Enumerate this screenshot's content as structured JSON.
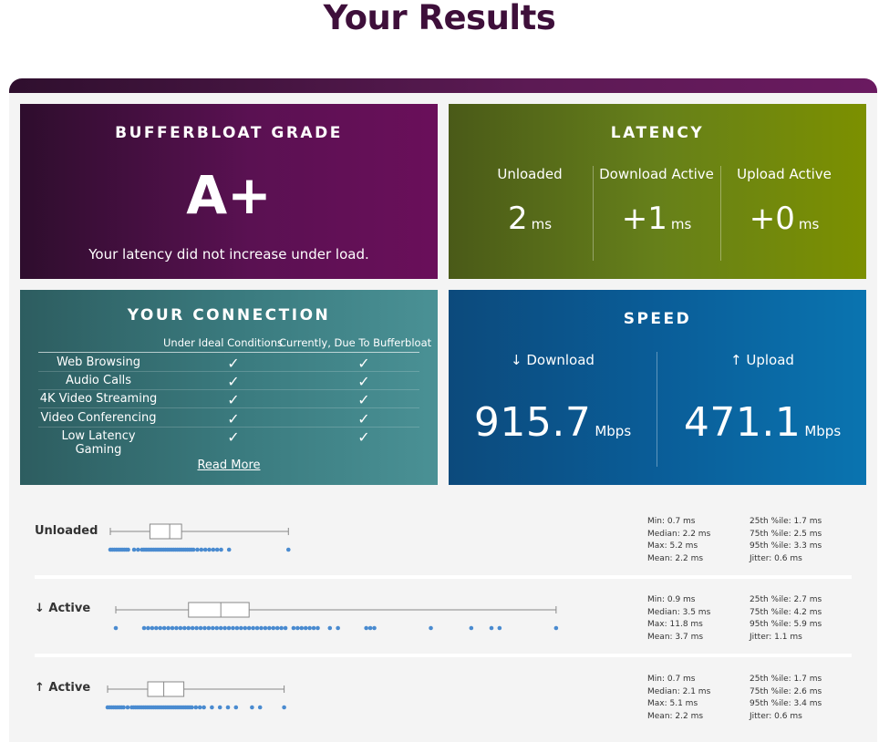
{
  "page": {
    "title": "Your Results"
  },
  "grade": {
    "title": "BUFFERBLOAT GRADE",
    "letter": "A+",
    "message": "Your latency did not increase under load."
  },
  "latency": {
    "title": "LATENCY",
    "columns": [
      {
        "label": "Unloaded",
        "value": "2",
        "unit": "ms"
      },
      {
        "label": "Download Active",
        "value": "+1",
        "unit": "ms"
      },
      {
        "label": "Upload Active",
        "value": "+0",
        "unit": "ms"
      }
    ]
  },
  "connection": {
    "title": "YOUR CONNECTION",
    "col_ideal": "Under Ideal Conditions",
    "col_current": "Currently, Due To Bufferbloat",
    "rows": [
      {
        "label": "Web Browsing",
        "ideal": "✓",
        "current": "✓"
      },
      {
        "label": "Audio Calls",
        "ideal": "✓",
        "current": "✓"
      },
      {
        "label": "4K Video Streaming",
        "ideal": "✓",
        "current": "✓"
      },
      {
        "label": "Video Conferencing",
        "ideal": "✓",
        "current": "✓"
      },
      {
        "label": "Low Latency Gaming",
        "ideal": "✓",
        "current": "✓"
      }
    ],
    "read_more": "Read More"
  },
  "speed": {
    "title": "SPEED",
    "download": {
      "label": "↓ Download",
      "value": "915.7",
      "unit": "Mbps"
    },
    "upload": {
      "label": "↑ Upload",
      "value": "471.1",
      "unit": "Mbps"
    }
  },
  "distributions": [
    {
      "label": "Unloaded",
      "stats_left": [
        "Min: 0.7 ms",
        "Median: 2.2 ms",
        "Max: 5.2 ms",
        "Mean: 2.2 ms"
      ],
      "stats_right": [
        "25th %ile: 1.7 ms",
        "75th %ile: 2.5 ms",
        "95th %ile: 3.3 ms",
        "Jitter: 0.6 ms"
      ],
      "box": {
        "min": 0.7,
        "q1": 1.7,
        "median": 2.2,
        "q3": 2.5,
        "max": 5.2
      },
      "samples": [
        0.7,
        0.75,
        0.8,
        0.85,
        0.9,
        0.95,
        1.0,
        1.05,
        1.1,
        1.15,
        1.3,
        1.4,
        1.5,
        1.55,
        1.6,
        1.65,
        1.7,
        1.75,
        1.8,
        1.85,
        1.9,
        1.95,
        2.0,
        2.05,
        2.1,
        2.15,
        2.2,
        2.25,
        2.3,
        2.35,
        2.4,
        2.45,
        2.5,
        2.55,
        2.6,
        2.65,
        2.7,
        2.75,
        2.8,
        2.9,
        3.0,
        3.1,
        3.2,
        3.3,
        3.4,
        3.5,
        3.7,
        5.2
      ]
    },
    {
      "label": "↓ Active",
      "stats_left": [
        "Min: 0.9 ms",
        "Median: 3.5 ms",
        "Max: 11.8 ms",
        "Mean: 3.7 ms"
      ],
      "stats_right": [
        "25th %ile: 2.7 ms",
        "75th %ile: 4.2 ms",
        "95th %ile: 5.9 ms",
        "Jitter: 1.1 ms"
      ],
      "box": {
        "min": 0.9,
        "q1": 2.7,
        "median": 3.5,
        "q3": 4.2,
        "max": 11.8
      },
      "samples": [
        0.9,
        1.6,
        1.7,
        1.8,
        1.9,
        2.0,
        2.1,
        2.2,
        2.3,
        2.4,
        2.5,
        2.6,
        2.7,
        2.8,
        2.9,
        3.0,
        3.1,
        3.2,
        3.3,
        3.4,
        3.5,
        3.6,
        3.7,
        3.8,
        3.9,
        4.0,
        4.1,
        4.2,
        4.3,
        4.4,
        4.5,
        4.6,
        4.7,
        4.8,
        4.9,
        5.0,
        5.1,
        5.3,
        5.4,
        5.5,
        5.6,
        5.7,
        5.8,
        5.9,
        6.2,
        6.4,
        7.1,
        7.2,
        7.3,
        8.7,
        9.7,
        10.2,
        10.4,
        11.8
      ]
    },
    {
      "label": "↑ Active",
      "stats_left": [
        "Min: 0.7 ms",
        "Median: 2.1 ms",
        "Max: 5.1 ms",
        "Mean: 2.2 ms"
      ],
      "stats_right": [
        "25th %ile: 1.7 ms",
        "75th %ile: 2.6 ms",
        "95th %ile: 3.4 ms",
        "Jitter: 0.6 ms"
      ],
      "box": {
        "min": 0.7,
        "q1": 1.7,
        "median": 2.1,
        "q3": 2.6,
        "max": 5.1
      },
      "samples": [
        0.7,
        0.75,
        0.8,
        0.85,
        0.9,
        0.95,
        1.0,
        1.05,
        1.1,
        1.2,
        1.3,
        1.35,
        1.4,
        1.45,
        1.5,
        1.55,
        1.6,
        1.65,
        1.7,
        1.75,
        1.8,
        1.85,
        1.9,
        1.95,
        2.0,
        2.05,
        2.1,
        2.15,
        2.2,
        2.25,
        2.3,
        2.35,
        2.4,
        2.45,
        2.5,
        2.55,
        2.6,
        2.65,
        2.7,
        2.75,
        2.8,
        2.9,
        3.0,
        3.1,
        3.3,
        3.5,
        3.7,
        3.9,
        4.3,
        4.5,
        5.1
      ]
    }
  ],
  "colors": {
    "title": "#3e0f3a",
    "dot": "#4a8bd0",
    "box_stroke": "#888888"
  }
}
